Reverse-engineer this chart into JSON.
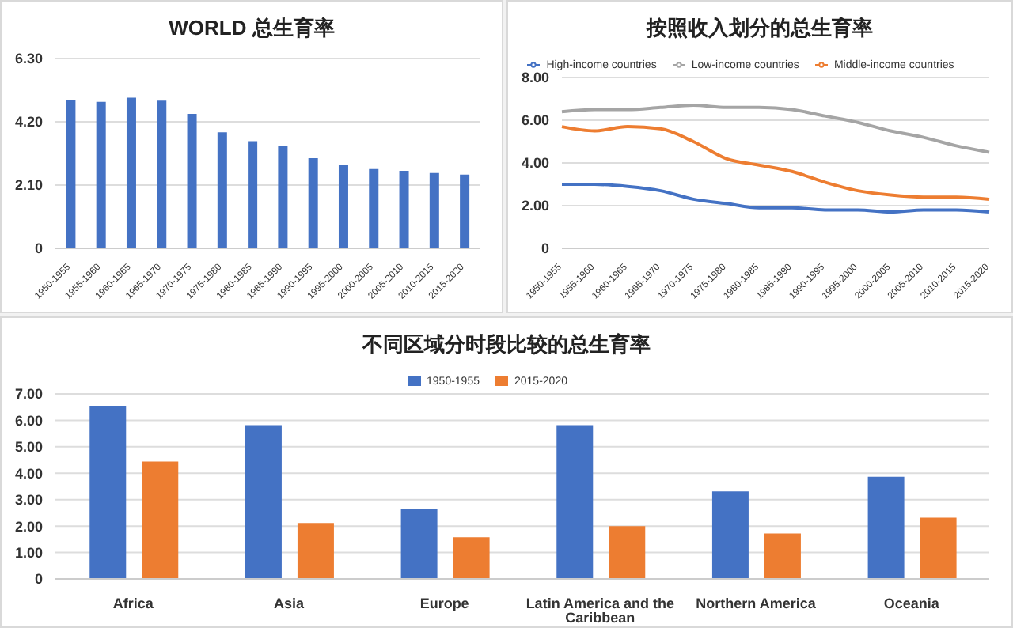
{
  "chart_data": [
    {
      "type": "bar",
      "title": "WORLD 总生育率",
      "categories": [
        "1950-1955",
        "1955-1960",
        "1960-1965",
        "1965-1970",
        "1970-1975",
        "1975-1980",
        "1980-1985",
        "1985-1990",
        "1990-1995",
        "1995-2000",
        "2000-2005",
        "2005-2010",
        "2010-2015",
        "2015-2020"
      ],
      "values": [
        4.93,
        4.86,
        5.0,
        4.9,
        4.46,
        3.85,
        3.56,
        3.41,
        2.99,
        2.77,
        2.63,
        2.57,
        2.5,
        2.45
      ],
      "color": "#4472c4",
      "ylim": [
        0,
        6.3
      ],
      "yticks": [
        {
          "value": 0,
          "label": "0"
        },
        {
          "value": 2.1,
          "label": "2.10"
        },
        {
          "value": 4.2,
          "label": "4.20"
        },
        {
          "value": 6.3,
          "label": "6.30"
        }
      ],
      "grid": "y"
    },
    {
      "type": "line",
      "title": "按照收入划分的总生育率",
      "categories": [
        "1950-1955",
        "1955-1960",
        "1960-1965",
        "1965-1970",
        "1970-1975",
        "1975-1980",
        "1980-1985",
        "1985-1990",
        "1990-1995",
        "1995-2000",
        "2000-2005",
        "2005-2010",
        "2010-2015",
        "2015-2020"
      ],
      "series": [
        {
          "name": "High-income countries",
          "color": "#4472c4",
          "values": [
            3.0,
            3.0,
            2.9,
            2.7,
            2.3,
            2.1,
            1.9,
            1.9,
            1.8,
            1.8,
            1.7,
            1.8,
            1.8,
            1.7
          ]
        },
        {
          "name": "Middle-income countries",
          "color": "#ed7d31",
          "values": [
            5.7,
            5.5,
            5.7,
            5.6,
            5.0,
            4.2,
            3.9,
            3.6,
            3.1,
            2.7,
            2.5,
            2.4,
            2.4,
            2.3
          ]
        },
        {
          "name": "Low-income countries",
          "color": "#a5a5a5",
          "values": [
            6.4,
            6.5,
            6.5,
            6.6,
            6.7,
            6.6,
            6.6,
            6.5,
            6.2,
            5.9,
            5.5,
            5.2,
            4.8,
            4.5
          ]
        }
      ],
      "ylim": [
        0,
        8
      ],
      "yticks": [
        0,
        {
          "value": 2,
          "label": "2.00"
        },
        {
          "value": 4,
          "label": "4.00"
        },
        {
          "value": 6,
          "label": "6.00"
        },
        {
          "value": 8,
          "label": "8.00"
        }
      ],
      "grid": "y",
      "legend": "top",
      "marker": "none"
    },
    {
      "type": "bar",
      "title": "不同区域分时段比较的总生育率",
      "categories": [
        "Africa",
        "Asia",
        "Europe",
        "Latin America and the Caribbean",
        "Northern America",
        "Oceania"
      ],
      "series": [
        {
          "name": "1950-1955",
          "color": "#4472c4",
          "values": [
            6.55,
            5.82,
            2.63,
            5.82,
            3.31,
            3.87
          ]
        },
        {
          "name": "2015-2020",
          "color": "#ed7d31",
          "values": [
            4.44,
            2.12,
            1.58,
            2.0,
            1.72,
            2.32
          ]
        }
      ],
      "ylim": [
        0,
        7
      ],
      "yticks": [
        0,
        {
          "value": 1,
          "label": "1.00"
        },
        {
          "value": 2,
          "label": "2.00"
        },
        {
          "value": 3,
          "label": "3.00"
        },
        {
          "value": 4,
          "label": "4.00"
        },
        {
          "value": 5,
          "label": "5.00"
        },
        {
          "value": 6,
          "label": "6.00"
        },
        {
          "value": 7,
          "label": "7.00"
        }
      ],
      "grid": "y",
      "legend": "top"
    }
  ]
}
